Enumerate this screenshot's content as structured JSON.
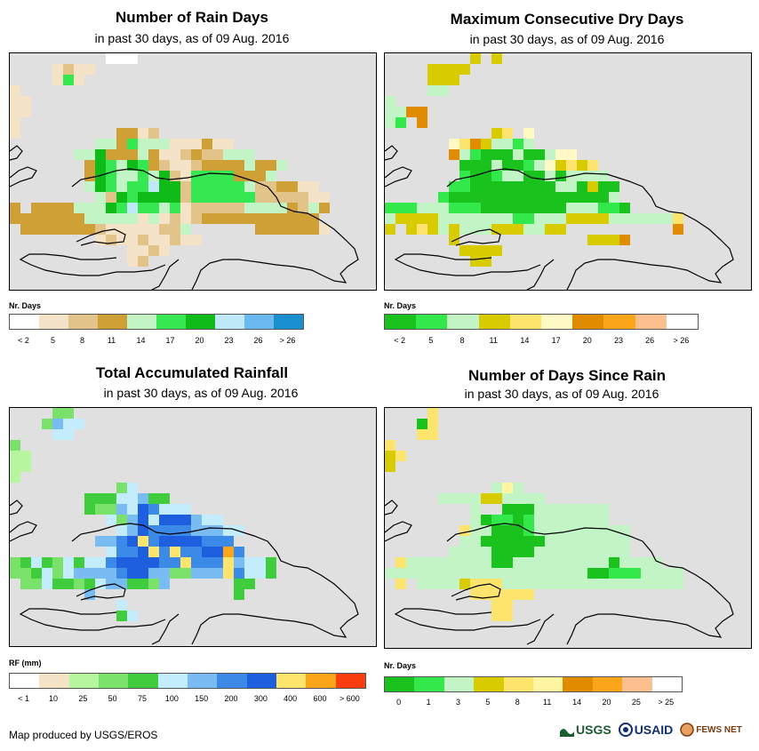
{
  "colors": {
    "sea": "#e0e0e0",
    "coast": "#000000",
    "rain_days": [
      "#ffffff",
      "#f5e3c7",
      "#e2c48a",
      "#cfa035",
      "#c3f4c6",
      "#35e852",
      "#0fbb16",
      "#bfe8f8",
      "#6ab9ef",
      "#1a8fd1"
    ],
    "dry_days": [
      "#19c21d",
      "#33e84a",
      "#c3f4c6",
      "#d8cc00",
      "#fde56d",
      "#fff9c6",
      "#e08b00",
      "#fba51a",
      "#fbc08e",
      "#ffffff"
    ],
    "rainfall": [
      "#ffffff",
      "#f5e3c7",
      "#b8f59f",
      "#7ae26a",
      "#3fcd3d",
      "#c3edfd",
      "#79bcf3",
      "#3b8ae8",
      "#1e5fe0",
      "#fde56d",
      "#fba51a",
      "#fa3d0f"
    ],
    "since_rain": [
      "#19c21d",
      "#33e84a",
      "#c3f4c6",
      "#d8cc00",
      "#fde56d",
      "#fff4a0",
      "#e08b00",
      "#fba51a",
      "#fbc08e",
      "#ffffff"
    ]
  },
  "panels": [
    {
      "title": "Number of Rain Days",
      "subtitle": "in past 30 days, as of 09 Aug. 2016",
      "legend_title": "Nr. Days",
      "legend_labels": [
        "< 2",
        "5",
        "8",
        "11",
        "14",
        "17",
        "20",
        "23",
        "26",
        "> 26"
      ],
      "palette": "rain_days",
      "grid": [
        ".........000.........................................",
        "....1211.............................................",
        "....151..............................................",
        "1....................................................",
        "11...................................................",
        "11...................................................",
        "1....................................................",
        "1.........3312.......................................",
        "........4435444111311................................",
        "......44633343112322444..............................",
        ".......3654653211233334334...........................",
        ".......365445462155553334............................",
        ".......4654557662555554223311........................",
        "........4265666625555552222211.......................",
        "3.3333444657554512222244443243.......................",
        "33333334444414121233333333333........................",
        ".3333333211111224......3333331.......................",
        "........1211211211...................................",
        "...........1121......................................",
        "...........12........................................",
        ".....................................................",
        "....................................................."
      ],
      "coast": "main"
    },
    {
      "title": "Maximum Consecutive Dry Days",
      "subtitle": "in past 30 days, as of 09 Aug. 2016",
      "legend_title": "Nr. Days",
      "legend_labels": [
        "< 2",
        "5",
        "8",
        "11",
        "14",
        "17",
        "20",
        "23",
        "26",
        "> 26"
      ],
      "palette": "dry_days",
      "grid": [
        "........3.3...........................................",
        "....3333..............................................",
        "....333...............................................",
        "....22................................................",
        "2.....................................................",
        "2266..................................................",
        "21.6..................................................",
        "..........34.5........................................",
        "......54632212........................................",
        "......621000200255....................................",
        ".......0002001253434..................................",
        ".......10012200202222.................................",
        "......1100000000220300................................",
        ".....10000000000000002................................",
        "11122211100000000222110...............................",
        "2333322222221122233332222224..........................",
        "3.343232223332233..........6..........................",
        "......3............3336...............................",
        ".......3333...........................................",
        "........33............................................",
        "......................................................"
      ],
      "coast": "main"
    },
    {
      "title": "Total Accumulated Rainfall",
      "subtitle": "in past 30 days, as of 09 Aug. 2016",
      "legend_title": "RF (mm)",
      "legend_labels": [
        "< 1",
        "10",
        "25",
        "50",
        "75",
        "100",
        "150",
        "200",
        "300",
        "400",
        "600",
        "> 600"
      ],
      "palette": "rainfall",
      "grid": [
        "....33...................................................",
        "...3655..................................................",
        "....55...................................................",
        "3........................................................",
        "22.......................................................",
        "22.......................................................",
        "2........................................................",
        "..........35.............................................",
        ".......44455644..........................................",
        ".......4336587555.........................................",
        ".........53685888655......................................",
        "..........568777766655....................................",
        "........6678978888777.....................................",
        ".........57789797788a7....................................",
        "3454354557888877977796554.................................",
        "3345356666788663366697554.................................",
        ".33544345664436......44..................................",
        ".......6.............4...................................",
        "..........5..............................................",
        "..........45.............................................",
        ".........................................................",
        "........................................................."
      ],
      "coast": "main"
    },
    {
      "title": "Number of Days Since Rain",
      "subtitle": "in past 30 days, as of 09 Aug. 2016",
      "legend_title": "Nr. Days",
      "legend_labels": [
        "0",
        "1",
        "3",
        "5",
        "8",
        "11",
        "14",
        "20",
        "25",
        "> 25"
      ],
      "palette": "since_rain",
      "grid": [
        "....4.......................................................",
        "...04.......................................................",
        "...44.......................................................",
        "4...........................................................",
        "34..........................................................",
        "3...........................................................",
        "............................................................",
        "..........252................................................",
        ".....2222332222..............................................",
        "........2..0002222222.......................................",
        "........2011012222222........................................",
        ".......4220001222222222......................................",
        ".......2200000022222222......................................",
        "......22220000222222222......................................",
        ".4222222220022222222202222...................................",
        "2222222222222222222001112222.................................",
        ".4.2222344422222222222222222.................................",
        "........444444..............................................",
        "..........44................................................",
        "..........44................................................",
        "............................................................"
      ],
      "coast": "main"
    }
  ],
  "footer": {
    "credit": "Map produced by USGS/EROS",
    "logos": [
      "USGS",
      "USAID",
      "FEWS NET"
    ]
  }
}
